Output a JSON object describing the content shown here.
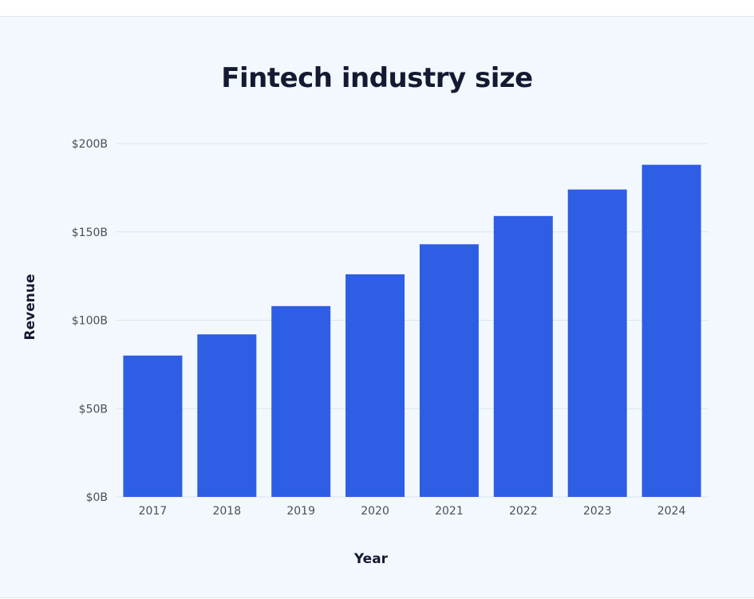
{
  "chart_data": {
    "type": "bar",
    "title": "Fintech industry size",
    "xlabel": "Year",
    "ylabel": "Revenue",
    "categories": [
      "2017",
      "2018",
      "2019",
      "2020",
      "2021",
      "2022",
      "2023",
      "2024"
    ],
    "values": [
      80,
      92,
      108,
      126,
      143,
      159,
      174,
      188
    ],
    "unit": "$B",
    "ylim": [
      0,
      200
    ],
    "yticks": [
      0,
      50,
      100,
      150,
      200
    ],
    "ytick_labels": [
      "$0B",
      "$50B",
      "$100B",
      "$150B",
      "$200B"
    ],
    "grid": true,
    "legend": "none",
    "colors": {
      "bar": "#2d5ee4",
      "grid": "#dde4ee",
      "background": "#f3f8fe",
      "title": "#151a33",
      "tick": "#4a4e5c"
    }
  }
}
